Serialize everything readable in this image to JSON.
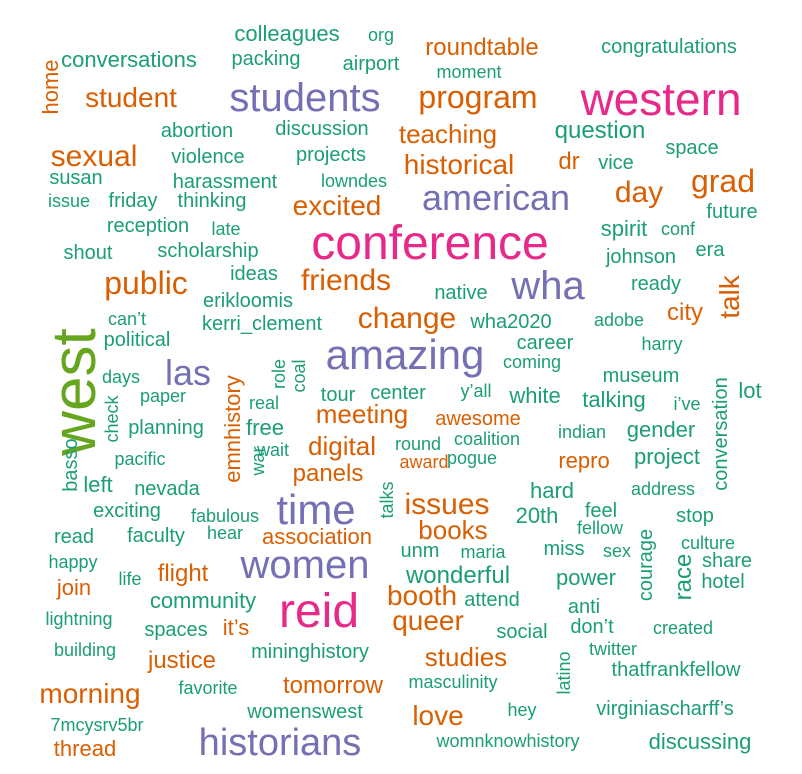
{
  "colors": {
    "green": "#1b9e77",
    "orange": "#d95f02",
    "purple": "#7570b3",
    "pink": "#e7298a",
    "lime": "#66a61e"
  },
  "words": [
    {
      "text": "west",
      "color": "lime"
    },
    {
      "text": "conference",
      "color": "pink"
    },
    {
      "text": "western",
      "color": "pink"
    },
    {
      "text": "reid",
      "color": "pink"
    },
    {
      "text": "amazing",
      "color": "purple"
    },
    {
      "text": "students",
      "color": "purple"
    },
    {
      "text": "american",
      "color": "purple"
    },
    {
      "text": "wha",
      "color": "purple"
    },
    {
      "text": "women",
      "color": "purple"
    },
    {
      "text": "time",
      "color": "purple"
    },
    {
      "text": "historians",
      "color": "purple"
    },
    {
      "text": "las",
      "color": "purple"
    },
    {
      "text": "colleagues",
      "color": "green"
    },
    {
      "text": "org",
      "color": "green"
    },
    {
      "text": "conversations",
      "color": "green"
    },
    {
      "text": "packing",
      "color": "green"
    },
    {
      "text": "airport",
      "color": "green"
    },
    {
      "text": "roundtable",
      "color": "orange"
    },
    {
      "text": "congratulations",
      "color": "green"
    },
    {
      "text": "moment",
      "color": "green"
    },
    {
      "text": "home",
      "color": "orange"
    },
    {
      "text": "student",
      "color": "orange"
    },
    {
      "text": "program",
      "color": "orange"
    },
    {
      "text": "abortion",
      "color": "green"
    },
    {
      "text": "discussion",
      "color": "green"
    },
    {
      "text": "teaching",
      "color": "orange"
    },
    {
      "text": "question",
      "color": "green"
    },
    {
      "text": "space",
      "color": "green"
    },
    {
      "text": "sexual",
      "color": "orange"
    },
    {
      "text": "violence",
      "color": "green"
    },
    {
      "text": "projects",
      "color": "green"
    },
    {
      "text": "historical",
      "color": "orange"
    },
    {
      "text": "dr",
      "color": "orange"
    },
    {
      "text": "vice",
      "color": "green"
    },
    {
      "text": "grad",
      "color": "orange"
    },
    {
      "text": "susan",
      "color": "green"
    },
    {
      "text": "harassment",
      "color": "green"
    },
    {
      "text": "lowndes",
      "color": "green"
    },
    {
      "text": "day",
      "color": "orange"
    },
    {
      "text": "issue",
      "color": "green"
    },
    {
      "text": "friday",
      "color": "green"
    },
    {
      "text": "thinking",
      "color": "green"
    },
    {
      "text": "excited",
      "color": "orange"
    },
    {
      "text": "future",
      "color": "green"
    },
    {
      "text": "reception",
      "color": "green"
    },
    {
      "text": "late",
      "color": "green"
    },
    {
      "text": "spirit",
      "color": "green"
    },
    {
      "text": "conf",
      "color": "green"
    },
    {
      "text": "shout",
      "color": "green"
    },
    {
      "text": "scholarship",
      "color": "green"
    },
    {
      "text": "johnson",
      "color": "green"
    },
    {
      "text": "era",
      "color": "green"
    },
    {
      "text": "public",
      "color": "orange"
    },
    {
      "text": "ideas",
      "color": "green"
    },
    {
      "text": "friends",
      "color": "orange"
    },
    {
      "text": "native",
      "color": "green"
    },
    {
      "text": "ready",
      "color": "green"
    },
    {
      "text": "talk",
      "color": "orange"
    },
    {
      "text": "erikloomis",
      "color": "green"
    },
    {
      "text": "can’t",
      "color": "green"
    },
    {
      "text": "kerri_clement",
      "color": "green"
    },
    {
      "text": "change",
      "color": "orange"
    },
    {
      "text": "wha2020",
      "color": "green"
    },
    {
      "text": "adobe",
      "color": "green"
    },
    {
      "text": "city",
      "color": "orange"
    },
    {
      "text": "political",
      "color": "green"
    },
    {
      "text": "career",
      "color": "green"
    },
    {
      "text": "harry",
      "color": "green"
    },
    {
      "text": "emnhistory",
      "color": "orange"
    },
    {
      "text": "role",
      "color": "green"
    },
    {
      "text": "coal",
      "color": "green"
    },
    {
      "text": "coming",
      "color": "green"
    },
    {
      "text": "days",
      "color": "green"
    },
    {
      "text": "museum",
      "color": "green"
    },
    {
      "text": "lot",
      "color": "green"
    },
    {
      "text": "paper",
      "color": "green"
    },
    {
      "text": "tour",
      "color": "green"
    },
    {
      "text": "center",
      "color": "green"
    },
    {
      "text": "y’all",
      "color": "green"
    },
    {
      "text": "white",
      "color": "green"
    },
    {
      "text": "talking",
      "color": "green"
    },
    {
      "text": "i’ve",
      "color": "green"
    },
    {
      "text": "check",
      "color": "green"
    },
    {
      "text": "real",
      "color": "green"
    },
    {
      "text": "meeting",
      "color": "orange"
    },
    {
      "text": "awesome",
      "color": "orange"
    },
    {
      "text": "planning",
      "color": "green"
    },
    {
      "text": "free",
      "color": "green"
    },
    {
      "text": "coalition",
      "color": "green"
    },
    {
      "text": "indian",
      "color": "green"
    },
    {
      "text": "gender",
      "color": "green"
    },
    {
      "text": "conversation",
      "color": "green"
    },
    {
      "text": "basso",
      "color": "green"
    },
    {
      "text": "wait",
      "color": "green"
    },
    {
      "text": "digital",
      "color": "orange"
    },
    {
      "text": "round",
      "color": "green"
    },
    {
      "text": "pogue",
      "color": "green"
    },
    {
      "text": "pacific",
      "color": "green"
    },
    {
      "text": "war",
      "color": "green"
    },
    {
      "text": "award",
      "color": "orange"
    },
    {
      "text": "repro",
      "color": "orange"
    },
    {
      "text": "project",
      "color": "green"
    },
    {
      "text": "left",
      "color": "green"
    },
    {
      "text": "nevada",
      "color": "green"
    },
    {
      "text": "panels",
      "color": "orange"
    },
    {
      "text": "issues",
      "color": "orange"
    },
    {
      "text": "hard",
      "color": "green"
    },
    {
      "text": "address",
      "color": "green"
    },
    {
      "text": "exciting",
      "color": "green"
    },
    {
      "text": "fabulous",
      "color": "green"
    },
    {
      "text": "talks",
      "color": "green"
    },
    {
      "text": "20th",
      "color": "green"
    },
    {
      "text": "feel",
      "color": "green"
    },
    {
      "text": "stop",
      "color": "green"
    },
    {
      "text": "read",
      "color": "green"
    },
    {
      "text": "faculty",
      "color": "green"
    },
    {
      "text": "hear",
      "color": "green"
    },
    {
      "text": "association",
      "color": "orange"
    },
    {
      "text": "books",
      "color": "orange"
    },
    {
      "text": "fellow",
      "color": "green"
    },
    {
      "text": "courage",
      "color": "green"
    },
    {
      "text": "culture",
      "color": "green"
    },
    {
      "text": "happy",
      "color": "green"
    },
    {
      "text": "unm",
      "color": "green"
    },
    {
      "text": "maria",
      "color": "green"
    },
    {
      "text": "miss",
      "color": "green"
    },
    {
      "text": "sex",
      "color": "green"
    },
    {
      "text": "share",
      "color": "green"
    },
    {
      "text": "join",
      "color": "orange"
    },
    {
      "text": "life",
      "color": "green"
    },
    {
      "text": "flight",
      "color": "orange"
    },
    {
      "text": "wonderful",
      "color": "green"
    },
    {
      "text": "power",
      "color": "green"
    },
    {
      "text": "race",
      "color": "green"
    },
    {
      "text": "hotel",
      "color": "green"
    },
    {
      "text": "community",
      "color": "green"
    },
    {
      "text": "booth",
      "color": "orange"
    },
    {
      "text": "attend",
      "color": "green"
    },
    {
      "text": "anti",
      "color": "green"
    },
    {
      "text": "lightning",
      "color": "green"
    },
    {
      "text": "spaces",
      "color": "green"
    },
    {
      "text": "it’s",
      "color": "orange"
    },
    {
      "text": "queer",
      "color": "orange"
    },
    {
      "text": "social",
      "color": "green"
    },
    {
      "text": "don’t",
      "color": "green"
    },
    {
      "text": "created",
      "color": "green"
    },
    {
      "text": "building",
      "color": "green"
    },
    {
      "text": "mininghistory",
      "color": "green"
    },
    {
      "text": "twitter",
      "color": "green"
    },
    {
      "text": "justice",
      "color": "orange"
    },
    {
      "text": "studies",
      "color": "orange"
    },
    {
      "text": "latino",
      "color": "green"
    },
    {
      "text": "thatfrankfellow",
      "color": "green"
    },
    {
      "text": "morning",
      "color": "orange"
    },
    {
      "text": "favorite",
      "color": "green"
    },
    {
      "text": "tomorrow",
      "color": "orange"
    },
    {
      "text": "masculinity",
      "color": "green"
    },
    {
      "text": "womenswest",
      "color": "green"
    },
    {
      "text": "hey",
      "color": "green"
    },
    {
      "text": "virginiascharff’s",
      "color": "green"
    },
    {
      "text": "7mcysrv5br",
      "color": "green"
    },
    {
      "text": "love",
      "color": "orange"
    },
    {
      "text": "thread",
      "color": "orange"
    },
    {
      "text": "womnknowhistory",
      "color": "green"
    },
    {
      "text": "discussing",
      "color": "green"
    }
  ]
}
